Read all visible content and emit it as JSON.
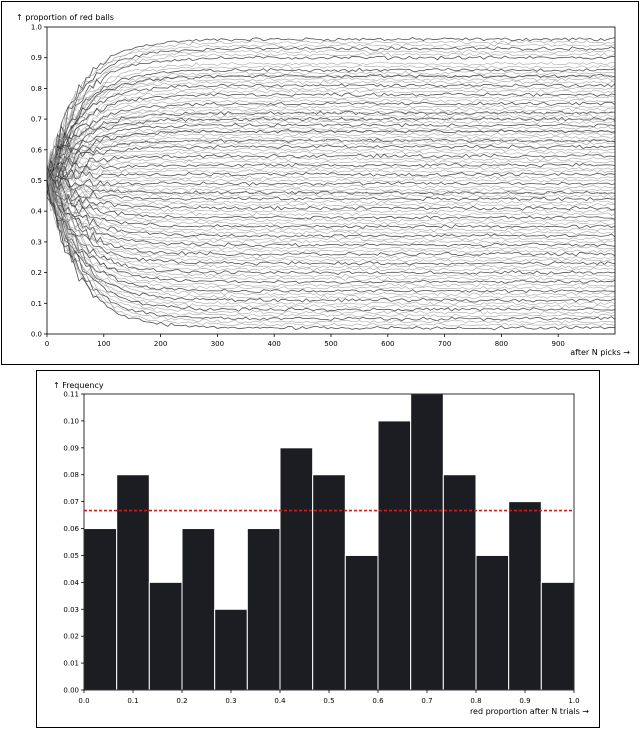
{
  "chart_data": [
    {
      "type": "line",
      "title": "",
      "ylabel": "↑ proportion of red balls",
      "xlabel": "after N picks →",
      "xlim": [
        0,
        1000
      ],
      "ylim": [
        0,
        1
      ],
      "x_ticks": [
        0,
        100,
        200,
        300,
        400,
        500,
        600,
        700,
        800,
        900
      ],
      "y_ticks": [
        0.0,
        0.1,
        0.2,
        0.3,
        0.4,
        0.5,
        0.6,
        0.7,
        0.8,
        0.9,
        1.0
      ],
      "grid": false,
      "series_count": 100,
      "start_value": 0.5,
      "final_values": [
        0.96,
        0.95,
        0.94,
        0.93,
        0.92,
        0.91,
        0.9,
        0.88,
        0.87,
        0.86,
        0.85,
        0.84,
        0.84,
        0.83,
        0.82,
        0.81,
        0.8,
        0.79,
        0.78,
        0.77,
        0.76,
        0.75,
        0.74,
        0.73,
        0.72,
        0.72,
        0.71,
        0.7,
        0.7,
        0.69,
        0.68,
        0.67,
        0.66,
        0.66,
        0.65,
        0.64,
        0.63,
        0.63,
        0.62,
        0.61,
        0.6,
        0.59,
        0.58,
        0.57,
        0.56,
        0.55,
        0.54,
        0.53,
        0.52,
        0.51,
        0.5,
        0.49,
        0.48,
        0.47,
        0.46,
        0.46,
        0.45,
        0.44,
        0.43,
        0.42,
        0.41,
        0.4,
        0.39,
        0.38,
        0.37,
        0.36,
        0.35,
        0.34,
        0.33,
        0.32,
        0.31,
        0.3,
        0.29,
        0.28,
        0.27,
        0.26,
        0.25,
        0.24,
        0.23,
        0.22,
        0.21,
        0.2,
        0.19,
        0.18,
        0.17,
        0.16,
        0.15,
        0.14,
        0.13,
        0.12,
        0.11,
        0.1,
        0.09,
        0.08,
        0.07,
        0.06,
        0.05,
        0.04,
        0.03,
        0.02
      ]
    },
    {
      "type": "bar",
      "title": "",
      "ylabel": "↑ Frequency",
      "xlabel": "red proportion after N trials →",
      "bin_edges": [
        0.0,
        0.0667,
        0.1333,
        0.2,
        0.2667,
        0.3333,
        0.4,
        0.4667,
        0.5333,
        0.6,
        0.6667,
        0.7333,
        0.8,
        0.8667,
        0.9333,
        1.0
      ],
      "values": [
        0.06,
        0.08,
        0.04,
        0.06,
        0.03,
        0.06,
        0.09,
        0.08,
        0.05,
        0.1,
        0.11,
        0.08,
        0.05,
        0.07,
        0.04
      ],
      "reference_line": 0.0667,
      "reference_color": "#d11a1a",
      "bar_color": "#1c1d22",
      "xlim": [
        0,
        1
      ],
      "ylim": [
        0,
        0.11
      ],
      "x_ticks": [
        0.0,
        0.1,
        0.2,
        0.3,
        0.4,
        0.5,
        0.6,
        0.7,
        0.8,
        0.9,
        1.0
      ],
      "y_ticks": [
        0.0,
        0.01,
        0.02,
        0.03,
        0.04,
        0.05,
        0.06,
        0.07,
        0.08,
        0.09,
        0.1,
        0.11
      ],
      "grid": false
    }
  ]
}
